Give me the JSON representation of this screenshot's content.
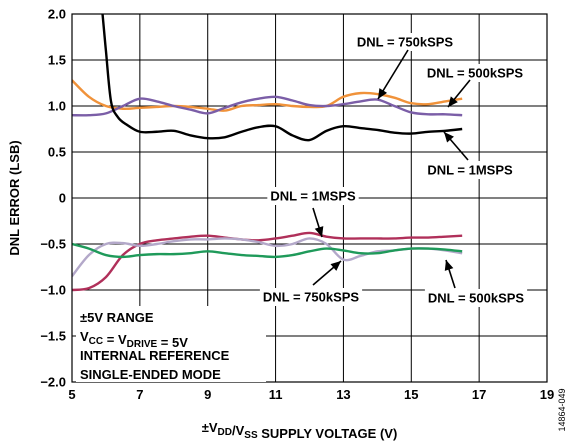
{
  "chart_data": {
    "type": "line",
    "xlabel": "±VDD/VSS SUPPLY VOLTAGE (V)",
    "ylabel": "DNL ERROR (LSB)",
    "xlim": [
      5,
      19
    ],
    "ylim": [
      -2.0,
      2.0
    ],
    "x_ticks": [
      "5",
      "7",
      "9",
      "11",
      "13",
      "15",
      "17",
      "19"
    ],
    "y_ticks": [
      "2.0",
      "1.5",
      "1.0",
      "0.5",
      "0",
      "−0.5",
      "−1.0",
      "−1.5",
      "−2.0"
    ],
    "grid": true,
    "series": [
      {
        "name": "DNL = 750kSPS",
        "group": "positive",
        "color": "#f0923a",
        "x": [
          5,
          5.5,
          6,
          6.5,
          7,
          7.5,
          8,
          8.5,
          9,
          9.5,
          10,
          10.5,
          11,
          11.5,
          12,
          12.5,
          13,
          13.5,
          14,
          14.5,
          15,
          15.5,
          16,
          16.5
        ],
        "y": [
          1.28,
          1.1,
          1.0,
          0.97,
          0.98,
          0.99,
          1.0,
          0.99,
          0.97,
          0.95,
          1.0,
          1.01,
          1.02,
          1.0,
          0.99,
          1.0,
          1.1,
          1.14,
          1.13,
          1.09,
          1.03,
          1.02,
          1.05,
          1.08
        ]
      },
      {
        "name": "DNL = 500kSPS",
        "group": "positive",
        "color": "#7b5ea7",
        "x": [
          5,
          5.5,
          6,
          6.5,
          7,
          7.5,
          8,
          8.5,
          9,
          9.5,
          10,
          10.5,
          11,
          11.5,
          12,
          12.5,
          13,
          13.5,
          14,
          14.5,
          15,
          15.5,
          16,
          16.5
        ],
        "y": [
          0.9,
          0.9,
          0.92,
          1.0,
          1.08,
          1.05,
          1.0,
          0.96,
          0.92,
          0.98,
          1.04,
          1.08,
          1.1,
          1.06,
          1.01,
          1.0,
          1.02,
          1.05,
          1.07,
          1.0,
          0.93,
          0.91,
          0.91,
          0.9
        ]
      },
      {
        "name": "DNL = 1MSPS",
        "group": "positive",
        "color": "#000000",
        "x": [
          5.9,
          6.0,
          6.15,
          6.35,
          6.6,
          7.0,
          7.5,
          8,
          8.5,
          9,
          9.5,
          10,
          10.5,
          11,
          11.5,
          12,
          12.5,
          13,
          13.5,
          14,
          14.5,
          15,
          15.5,
          16,
          16.5
        ],
        "y": [
          2.0,
          1.6,
          1.05,
          0.88,
          0.8,
          0.72,
          0.72,
          0.73,
          0.68,
          0.65,
          0.66,
          0.72,
          0.77,
          0.78,
          0.68,
          0.63,
          0.73,
          0.78,
          0.76,
          0.74,
          0.71,
          0.7,
          0.72,
          0.73,
          0.75
        ]
      },
      {
        "name": "DNL = 1MSPS",
        "group": "negative",
        "color": "#b0305a",
        "x": [
          5,
          5.5,
          6,
          6.5,
          7,
          7.5,
          8,
          8.5,
          9,
          9.5,
          10,
          10.5,
          11,
          11.5,
          12,
          12.5,
          13,
          13.5,
          14,
          14.5,
          15,
          15.5,
          16,
          16.5
        ],
        "y": [
          -1.0,
          -0.98,
          -0.86,
          -0.62,
          -0.5,
          -0.46,
          -0.44,
          -0.42,
          -0.41,
          -0.43,
          -0.45,
          -0.46,
          -0.44,
          -0.41,
          -0.38,
          -0.42,
          -0.44,
          -0.44,
          -0.44,
          -0.44,
          -0.43,
          -0.43,
          -0.42,
          -0.41
        ]
      },
      {
        "name": "DNL = 750kSPS",
        "group": "negative",
        "color": "#b3a8c9",
        "x": [
          5,
          5.5,
          6,
          6.5,
          7,
          7.5,
          8,
          8.5,
          9,
          9.5,
          10,
          10.5,
          11,
          11.5,
          12,
          12.5,
          13,
          13.5,
          14,
          14.5,
          15,
          15.5,
          16,
          16.5
        ],
        "y": [
          -0.85,
          -0.62,
          -0.5,
          -0.49,
          -0.52,
          -0.5,
          -0.47,
          -0.45,
          -0.45,
          -0.44,
          -0.45,
          -0.48,
          -0.52,
          -0.5,
          -0.44,
          -0.5,
          -0.67,
          -0.63,
          -0.58,
          -0.57,
          -0.55,
          -0.55,
          -0.57,
          -0.6
        ]
      },
      {
        "name": "DNL = 500kSPS",
        "group": "negative",
        "color": "#1f9a5a",
        "x": [
          5,
          5.5,
          6,
          6.5,
          7,
          7.5,
          8,
          8.5,
          9,
          9.5,
          10,
          10.5,
          11,
          11.5,
          12,
          12.5,
          13,
          13.5,
          14,
          14.5,
          15,
          15.5,
          16,
          16.5
        ],
        "y": [
          -0.5,
          -0.55,
          -0.62,
          -0.64,
          -0.62,
          -0.61,
          -0.61,
          -0.6,
          -0.58,
          -0.6,
          -0.62,
          -0.63,
          -0.64,
          -0.62,
          -0.58,
          -0.55,
          -0.57,
          -0.6,
          -0.6,
          -0.57,
          -0.55,
          -0.55,
          -0.56,
          -0.58
        ]
      }
    ],
    "annotations": [
      {
        "text": "DNL = 750kSPS",
        "target_series": 0
      },
      {
        "text": "DNL = 500kSPS",
        "target_series": 1
      },
      {
        "text": "DNL = 1MSPS",
        "target_series": 2
      },
      {
        "text": "DNL = 1MSPS",
        "target_series": 3
      },
      {
        "text": "DNL = 750kSPS",
        "target_series": 4
      },
      {
        "text": "DNL = 500kSPS",
        "target_series": 5
      }
    ],
    "conditions": {
      "line1": "±5V RANGE",
      "line2_main": "V",
      "line2_sub1": "CC",
      "line2_mid": " = V",
      "line2_sub2": "DRIVE",
      "line2_end": " = 5V",
      "line3": "INTERNAL REFERENCE",
      "line4": "SINGLE-ENDED MODE"
    },
    "figure_id": "14864-049"
  }
}
